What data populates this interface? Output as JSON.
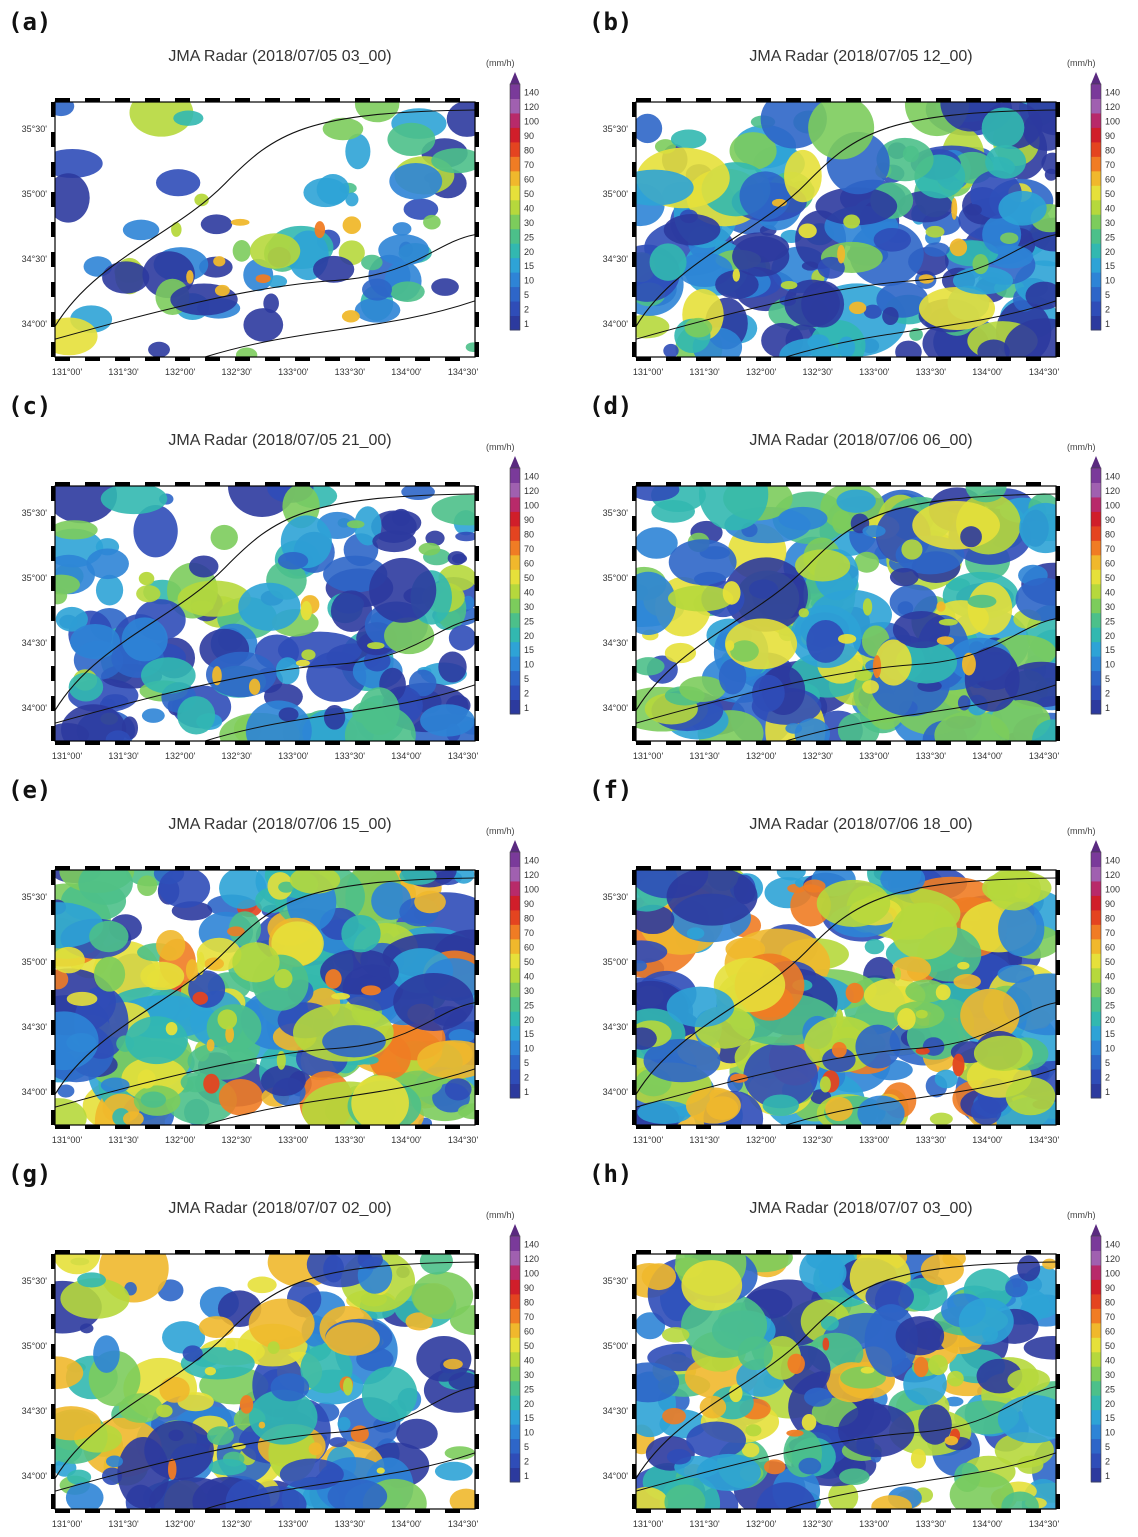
{
  "figure": {
    "panels": [
      {
        "label": "(a)",
        "title": "JMA Radar (2018/07/05 03_00)",
        "coverage": 0.28,
        "intensity": 0.55,
        "seed": 11
      },
      {
        "label": "(b)",
        "title": "JMA Radar (2018/07/05 12_00)",
        "coverage": 0.72,
        "intensity": 0.55,
        "seed": 23
      },
      {
        "label": "(c)",
        "title": "JMA Radar (2018/07/05 21_00)",
        "coverage": 0.62,
        "intensity": 0.45,
        "seed": 37
      },
      {
        "label": "(d)",
        "title": "JMA Radar (2018/07/06 06_00)",
        "coverage": 0.78,
        "intensity": 0.6,
        "seed": 41
      },
      {
        "label": "(e)",
        "title": "JMA Radar (2018/07/06 15_00)",
        "coverage": 0.86,
        "intensity": 0.82,
        "seed": 53
      },
      {
        "label": "(f)",
        "title": "JMA Radar (2018/07/06 18_00)",
        "coverage": 0.9,
        "intensity": 0.8,
        "seed": 67
      },
      {
        "label": "(g)",
        "title": "JMA Radar (2018/07/07 02_00)",
        "coverage": 0.66,
        "intensity": 0.7,
        "seed": 71
      },
      {
        "label": "(h)",
        "title": "JMA Radar (2018/07/07 03_00)",
        "coverage": 0.74,
        "intensity": 0.72,
        "seed": 83
      }
    ],
    "lon_ticks": [
      "131°00'",
      "131°30'",
      "132°00'",
      "132°30'",
      "133°00'",
      "133°30'",
      "134°00'",
      "134°30'"
    ],
    "lat_ticks": [
      "35°30'",
      "35°00'",
      "34°30'",
      "34°00'"
    ],
    "colorbar": {
      "unit": "(mm/h)",
      "levels": [
        "1",
        "2",
        "5",
        "10",
        "15",
        "20",
        "25",
        "30",
        "40",
        "50",
        "60",
        "70",
        "80",
        "90",
        "100",
        "120",
        "140"
      ],
      "colors": [
        "#2c3a9e",
        "#2f4db8",
        "#2e66c8",
        "#2e84d6",
        "#2ea3d6",
        "#32b8b0",
        "#4cc08a",
        "#7ccc5c",
        "#b6d83c",
        "#e6e03a",
        "#f0b82c",
        "#f07c24",
        "#e44420",
        "#d01e2a",
        "#b82a6a",
        "#a060b0",
        "#7a3a9a"
      ]
    }
  }
}
